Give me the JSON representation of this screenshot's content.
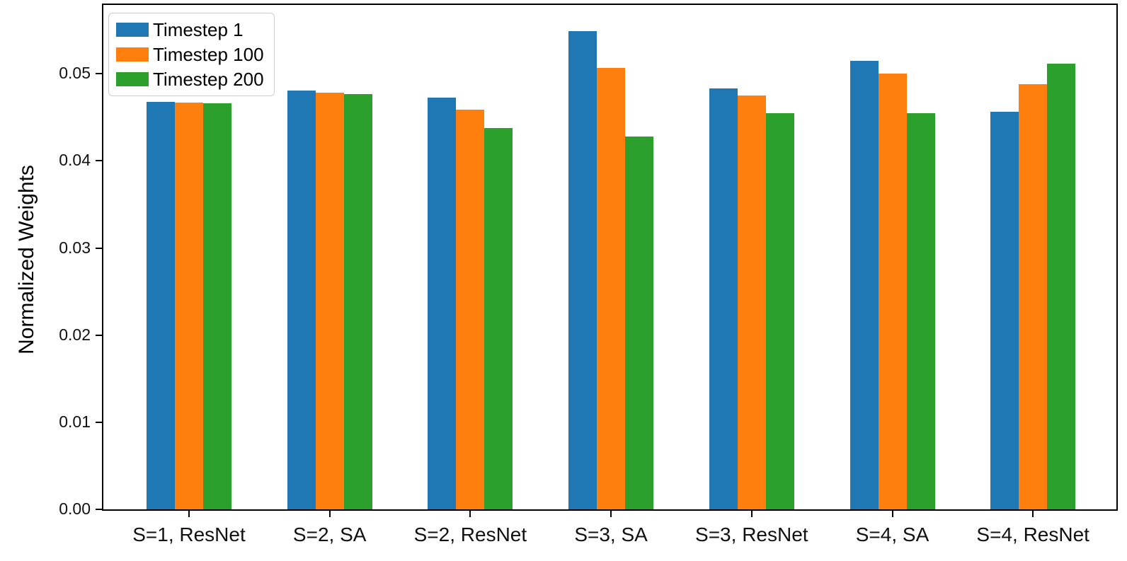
{
  "chart_data": {
    "type": "bar",
    "title": "",
    "xlabel": "",
    "ylabel": "Normalized Weights",
    "grid": false,
    "legend_position": "upper left",
    "ylim": [
      0,
      0.0579
    ],
    "yticks": [
      {
        "value": 0.0,
        "label": "0.00"
      },
      {
        "value": 0.01,
        "label": "0.01"
      },
      {
        "value": 0.02,
        "label": "0.02"
      },
      {
        "value": 0.03,
        "label": "0.03"
      },
      {
        "value": 0.04,
        "label": "0.04"
      },
      {
        "value": 0.05,
        "label": "0.05"
      }
    ],
    "categories": [
      "S=1, ResNet",
      "S=2, SA",
      "S=2, ResNet",
      "S=3, SA",
      "S=3, ResNet",
      "S=4, SA",
      "S=4, ResNet"
    ],
    "series": [
      {
        "name": "Timestep 1",
        "color": "#1f77b4",
        "values": [
          0.0468,
          0.0481,
          0.0473,
          0.0549,
          0.0483,
          0.0515,
          0.0456
        ]
      },
      {
        "name": "Timestep 100",
        "color": "#ff7f0e",
        "values": [
          0.0467,
          0.0478,
          0.0459,
          0.0507,
          0.0475,
          0.05,
          0.0488
        ]
      },
      {
        "name": "Timestep 200",
        "color": "#2ca02c",
        "values": [
          0.0466,
          0.0477,
          0.0438,
          0.0428,
          0.0455,
          0.0455,
          0.0512
        ]
      }
    ]
  }
}
